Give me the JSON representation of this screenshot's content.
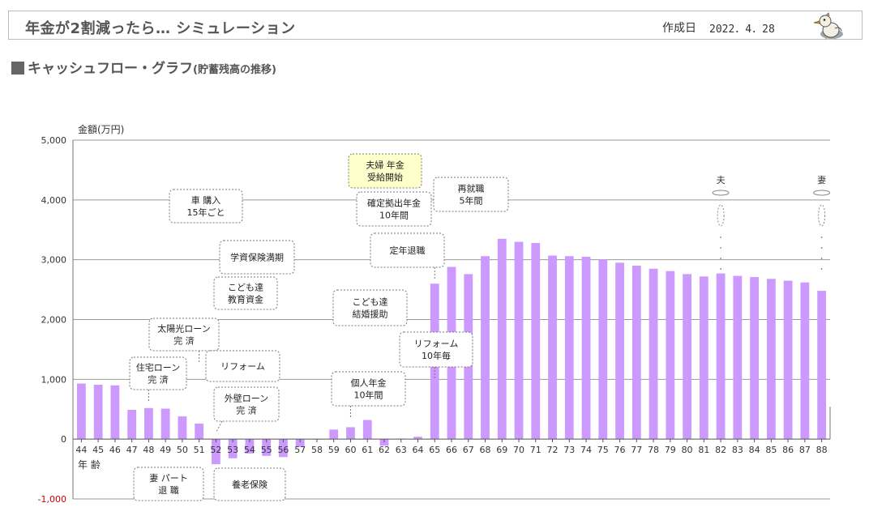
{
  "header": {
    "title": "年金が2割減ったら… シミュレーション",
    "created_label": "作成日",
    "created_date": "2022．4．28",
    "mascot_icon": "duck-mascot-icon"
  },
  "section": {
    "title": "キャッシュフロー・グラフ",
    "subtitle": "(貯蓄残高の推移)"
  },
  "chart_data": {
    "type": "bar",
    "title": "キャッシュフロー・グラフ(貯蓄残高の推移)",
    "ylabel": "金額(万円)",
    "xlabel": "年 齢",
    "ylim": [
      -1000,
      5000
    ],
    "yticks": [
      "-1,000",
      "0",
      "1,000",
      "2,000",
      "3,000",
      "4,000",
      "5,000"
    ],
    "ytick_values": [
      -1000,
      0,
      1000,
      2000,
      3000,
      4000,
      5000
    ],
    "bar_color": "#cc99ff",
    "categories": [
      "44",
      "45",
      "46",
      "47",
      "48",
      "49",
      "50",
      "51",
      "52",
      "53",
      "54",
      "55",
      "56",
      "57",
      "58",
      "59",
      "60",
      "61",
      "62",
      "63",
      "64",
      "65",
      "66",
      "67",
      "68",
      "69",
      "70",
      "71",
      "72",
      "73",
      "74",
      "75",
      "76",
      "77",
      "78",
      "79",
      "80",
      "81",
      "82",
      "83",
      "84",
      "85",
      "86",
      "87",
      "88"
    ],
    "values": [
      930,
      910,
      900,
      490,
      520,
      510,
      380,
      260,
      -420,
      -320,
      -240,
      -280,
      -300,
      -130,
      0,
      160,
      200,
      320,
      -110,
      10,
      40,
      2600,
      2880,
      2760,
      3060,
      3350,
      3300,
      3280,
      3070,
      3060,
      3050,
      3000,
      2950,
      2900,
      2850,
      2810,
      2760,
      2720,
      2770,
      2730,
      2710,
      2680,
      2650,
      2620,
      2480
    ],
    "annotations": [
      {
        "text": [
          "住宅ローン",
          "完 済"
        ],
        "age": "48"
      },
      {
        "text": [
          "太陽光ローン",
          "完 済"
        ],
        "age": "51"
      },
      {
        "text": [
          "車 購入",
          "15年ごと"
        ]
      },
      {
        "text": [
          "学資保険満期"
        ]
      },
      {
        "text": [
          "こども達",
          "教育資金"
        ]
      },
      {
        "text": [
          "リフォーム"
        ]
      },
      {
        "text": [
          "外壁ローン",
          "完 済"
        ],
        "age": "52"
      },
      {
        "text": [
          "妻 パート",
          "退 職"
        ]
      },
      {
        "text": [
          "養老保険"
        ]
      },
      {
        "text": [
          "夫婦 年金",
          "受給開始"
        ],
        "highlight": true
      },
      {
        "text": [
          "確定拠出年金",
          "10年間"
        ]
      },
      {
        "text": [
          "再就職",
          "5年間"
        ]
      },
      {
        "text": [
          "定年退職"
        ],
        "age": "65"
      },
      {
        "text": [
          "こども達",
          "結婚援助"
        ]
      },
      {
        "text": [
          "リフォーム",
          "10年毎"
        ],
        "age": "65"
      },
      {
        "text": [
          "個人年金",
          "10年間"
        ],
        "age": "60"
      }
    ],
    "markers": [
      {
        "label": "夫",
        "age": "82"
      },
      {
        "label": "妻",
        "age": "88"
      }
    ]
  }
}
